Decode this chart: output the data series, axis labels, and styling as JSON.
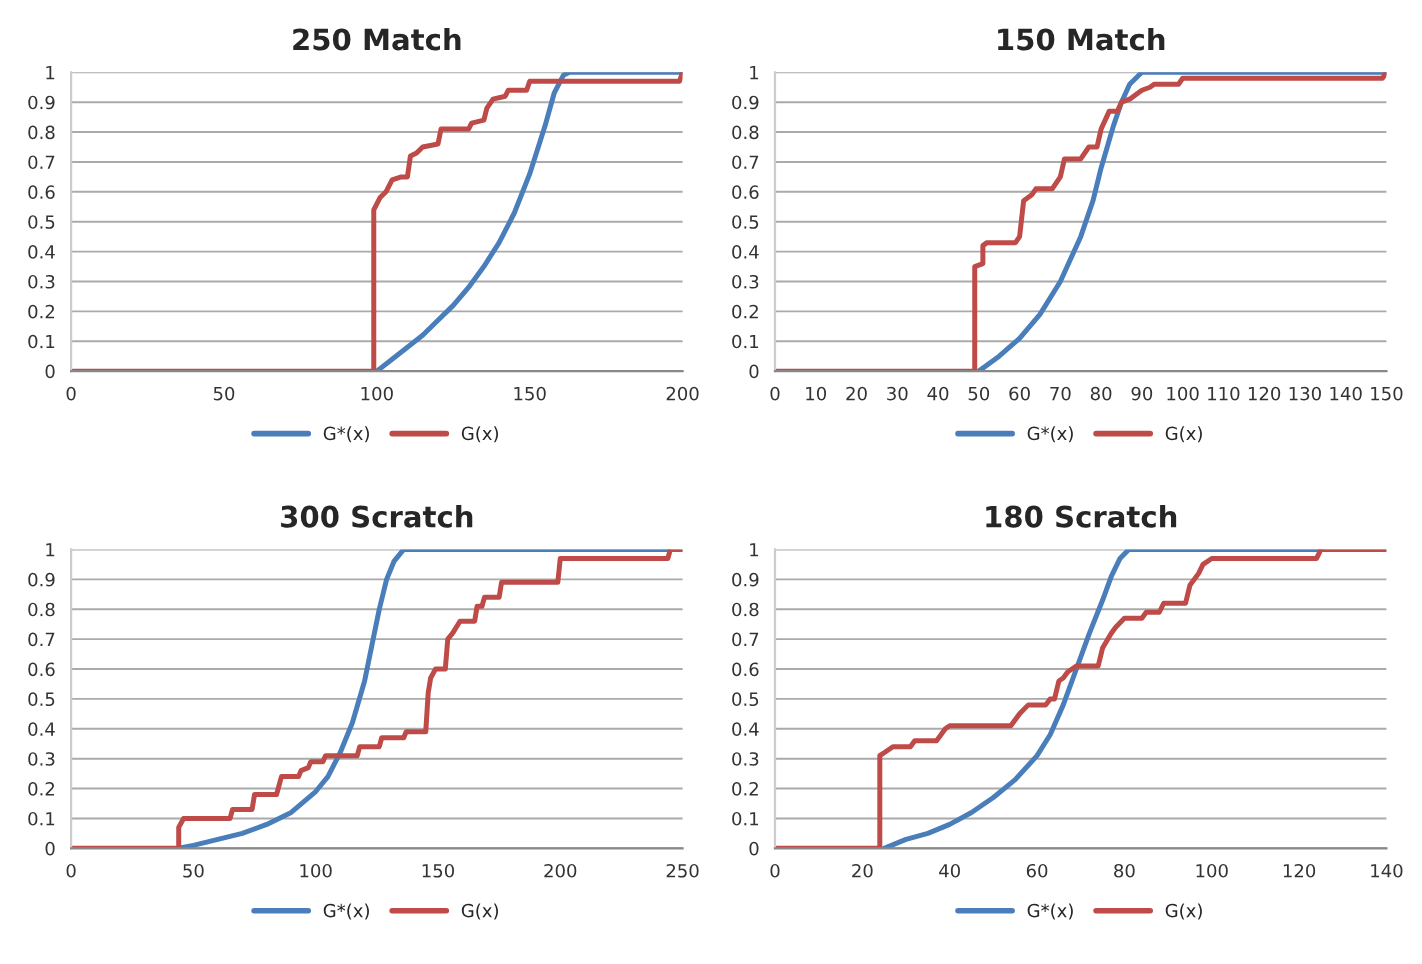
{
  "chart_data": [
    {
      "type": "line",
      "title": "250 Match",
      "xlim": [
        0,
        200
      ],
      "xticks": [
        0,
        50,
        100,
        150,
        200
      ],
      "ylim": [
        0,
        1
      ],
      "yticks": [
        0,
        0.1,
        0.2,
        0.3,
        0.4,
        0.5,
        0.6,
        0.7,
        0.8,
        0.9,
        1
      ],
      "grid": "y",
      "legend": "bottom",
      "marker": "none",
      "line_style": "solid",
      "series": [
        {
          "name": "G*(x)",
          "color": "#4a7ebb",
          "x": [
            100,
            105,
            110,
            115,
            120,
            125,
            130,
            135,
            140,
            145,
            150,
            155,
            158,
            161,
            163,
            200
          ],
          "values": [
            0,
            0.04,
            0.08,
            0.12,
            0.17,
            0.22,
            0.28,
            0.35,
            0.43,
            0.53,
            0.66,
            0.82,
            0.93,
            0.99,
            1,
            1
          ]
        },
        {
          "name": "G(x)",
          "color": "#be4b48",
          "x": [
            0,
            99,
            99,
            101,
            103,
            105,
            108,
            110,
            111,
            113,
            115,
            120,
            121,
            130,
            131,
            135,
            136,
            138,
            142,
            143,
            149,
            150,
            199,
            200
          ],
          "values": [
            0,
            0,
            0.54,
            0.58,
            0.6,
            0.64,
            0.65,
            0.65,
            0.72,
            0.73,
            0.75,
            0.76,
            0.81,
            0.81,
            0.83,
            0.84,
            0.88,
            0.91,
            0.92,
            0.94,
            0.94,
            0.97,
            0.97,
            1
          ]
        }
      ]
    },
    {
      "type": "line",
      "title": "150 Match",
      "xlim": [
        0,
        150
      ],
      "xticks": [
        0,
        10,
        20,
        30,
        40,
        50,
        60,
        70,
        80,
        90,
        100,
        110,
        120,
        130,
        140,
        150
      ],
      "ylim": [
        0,
        1
      ],
      "yticks": [
        0,
        0.1,
        0.2,
        0.3,
        0.4,
        0.5,
        0.6,
        0.7,
        0.8,
        0.9,
        1
      ],
      "grid": "y",
      "legend": "bottom",
      "marker": "none",
      "line_style": "solid",
      "series": [
        {
          "name": "G*(x)",
          "color": "#4a7ebb",
          "x": [
            50,
            55,
            60,
            65,
            70,
            75,
            78,
            80,
            83,
            85,
            87,
            90,
            150
          ],
          "values": [
            0,
            0.05,
            0.11,
            0.19,
            0.3,
            0.45,
            0.57,
            0.68,
            0.82,
            0.9,
            0.96,
            1,
            1
          ]
        },
        {
          "name": "G(x)",
          "color": "#be4b48",
          "x": [
            0,
            49,
            49,
            51,
            51,
            52,
            59,
            60,
            61,
            63,
            64,
            68,
            70,
            71,
            75,
            77,
            79,
            80,
            81,
            82,
            84,
            85,
            87,
            89,
            90,
            92,
            93,
            99,
            100,
            149,
            150
          ],
          "values": [
            0,
            0,
            0.35,
            0.36,
            0.42,
            0.43,
            0.43,
            0.45,
            0.57,
            0.59,
            0.61,
            0.61,
            0.65,
            0.71,
            0.71,
            0.75,
            0.75,
            0.81,
            0.84,
            0.87,
            0.87,
            0.9,
            0.91,
            0.93,
            0.94,
            0.95,
            0.96,
            0.96,
            0.98,
            0.98,
            1
          ]
        }
      ]
    },
    {
      "type": "line",
      "title": "300 Scratch",
      "xlim": [
        0,
        250
      ],
      "xticks": [
        0,
        50,
        100,
        150,
        200,
        250
      ],
      "ylim": [
        0,
        1
      ],
      "yticks": [
        0,
        0.1,
        0.2,
        0.3,
        0.4,
        0.5,
        0.6,
        0.7,
        0.8,
        0.9,
        1
      ],
      "grid": "y",
      "legend": "bottom",
      "marker": "none",
      "line_style": "solid",
      "series": [
        {
          "name": "G*(x)",
          "color": "#4a7ebb",
          "x": [
            44,
            50,
            60,
            70,
            80,
            90,
            100,
            105,
            110,
            115,
            120,
            123,
            126,
            129,
            132,
            136,
            244
          ],
          "values": [
            0,
            0.01,
            0.03,
            0.05,
            0.08,
            0.12,
            0.19,
            0.24,
            0.32,
            0.42,
            0.56,
            0.68,
            0.8,
            0.9,
            0.96,
            1,
            1
          ]
        },
        {
          "name": "G(x)",
          "color": "#be4b48",
          "x": [
            0,
            44,
            44,
            46,
            65,
            66,
            74,
            75,
            84,
            86,
            93,
            94,
            97,
            98,
            103,
            104,
            117,
            118,
            126,
            127,
            136,
            137,
            145,
            146,
            147,
            149,
            153,
            154,
            156,
            159,
            165,
            166,
            168,
            169,
            175,
            176,
            199,
            200,
            244,
            245,
            250
          ],
          "values": [
            0,
            0,
            0.07,
            0.1,
            0.1,
            0.13,
            0.13,
            0.18,
            0.18,
            0.24,
            0.24,
            0.26,
            0.27,
            0.29,
            0.29,
            0.31,
            0.31,
            0.34,
            0.34,
            0.37,
            0.37,
            0.39,
            0.39,
            0.52,
            0.57,
            0.6,
            0.6,
            0.7,
            0.72,
            0.76,
            0.76,
            0.81,
            0.81,
            0.84,
            0.84,
            0.89,
            0.89,
            0.97,
            0.97,
            1,
            1
          ]
        }
      ]
    },
    {
      "type": "line",
      "title": "180 Scratch",
      "xlim": [
        0,
        140
      ],
      "xticks": [
        0,
        20,
        40,
        60,
        80,
        100,
        120,
        140
      ],
      "ylim": [
        0,
        1
      ],
      "yticks": [
        0,
        0.1,
        0.2,
        0.3,
        0.4,
        0.5,
        0.6,
        0.7,
        0.8,
        0.9,
        1
      ],
      "grid": "y",
      "legend": "bottom",
      "marker": "none",
      "line_style": "solid",
      "series": [
        {
          "name": "G*(x)",
          "color": "#4a7ebb",
          "x": [
            25,
            30,
            35,
            40,
            45,
            50,
            55,
            60,
            63,
            66,
            69,
            72,
            75,
            77,
            79,
            81,
            125
          ],
          "values": [
            0,
            0.03,
            0.05,
            0.08,
            0.12,
            0.17,
            0.23,
            0.31,
            0.38,
            0.48,
            0.6,
            0.72,
            0.83,
            0.91,
            0.97,
            1,
            1
          ]
        },
        {
          "name": "G(x)",
          "color": "#be4b48",
          "x": [
            0,
            24,
            24,
            25,
            27,
            31,
            32,
            37,
            39,
            40,
            54,
            56,
            58,
            62,
            63,
            64,
            65,
            66,
            67,
            69,
            74,
            75,
            77,
            78,
            80,
            84,
            85,
            88,
            89,
            94,
            95,
            97,
            98,
            100,
            124,
            125,
            140
          ],
          "values": [
            0,
            0,
            0.31,
            0.32,
            0.34,
            0.34,
            0.36,
            0.36,
            0.4,
            0.41,
            0.41,
            0.45,
            0.48,
            0.48,
            0.5,
            0.5,
            0.56,
            0.57,
            0.59,
            0.61,
            0.61,
            0.67,
            0.72,
            0.74,
            0.77,
            0.77,
            0.79,
            0.79,
            0.82,
            0.82,
            0.88,
            0.92,
            0.95,
            0.97,
            0.97,
            1,
            1
          ]
        }
      ]
    }
  ]
}
